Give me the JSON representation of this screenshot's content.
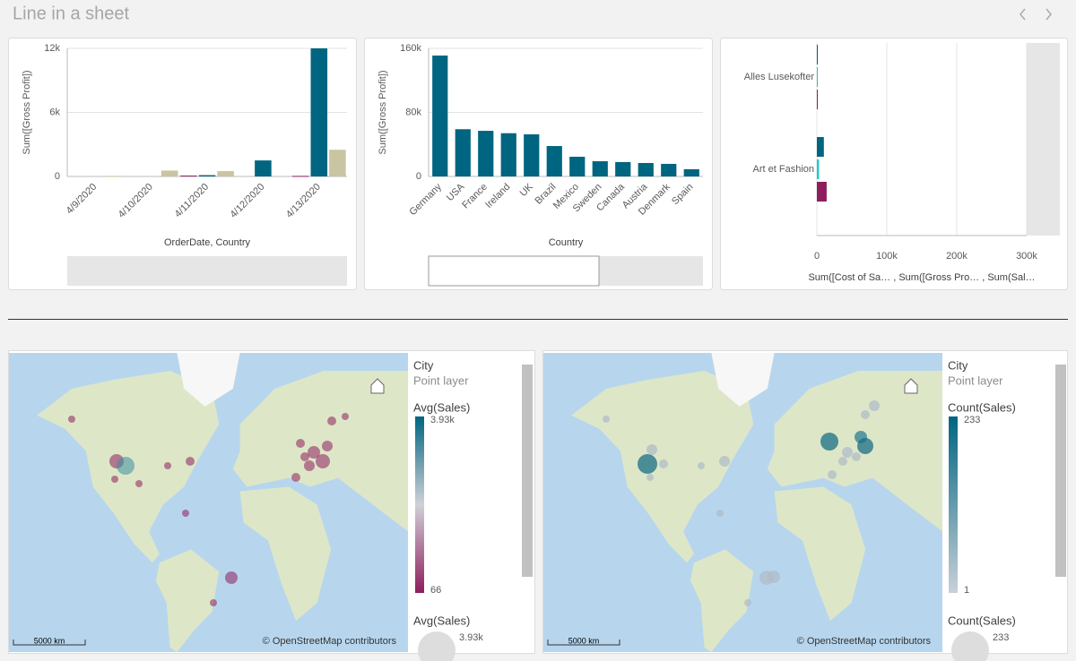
{
  "header": {
    "title": "Line in a sheet"
  },
  "chart_data": [
    {
      "type": "bar",
      "y_label": "Sum([Gross Profit])",
      "x_label": "OrderDate, Country",
      "categories": [
        "4/9/2020",
        "4/10/2020",
        "4/11/2020",
        "4/12/2020",
        "4/13/2020"
      ],
      "series": [
        {
          "color": "#8e1e5c",
          "values": [
            null,
            null,
            80,
            null,
            50
          ]
        },
        {
          "color": "#006580",
          "values": [
            null,
            null,
            120,
            1500,
            12000
          ]
        },
        {
          "color": "#c9c5a3",
          "values": [
            50,
            550,
            500,
            null,
            2500
          ]
        }
      ],
      "ylim": [
        0,
        12000
      ],
      "yticks": [
        0,
        {
          "value": 6000,
          "label": "6k"
        },
        {
          "value": 12000,
          "label": "12k"
        }
      ],
      "grid": true
    },
    {
      "type": "bar",
      "y_label": "Sum([Gross Profit])",
      "x_label": "Country",
      "categories": [
        "Germany",
        "USA",
        "France",
        "Ireland",
        "UK",
        "Brazil",
        "Mexico",
        "Sweden",
        "Canada",
        "Austria",
        "Denmark",
        "Spain"
      ],
      "series": [
        {
          "color": "#006580",
          "values": [
            151000,
            59000,
            57000,
            54000,
            52600,
            38000,
            24600,
            19000,
            18000,
            16800,
            15700,
            9000
          ]
        }
      ],
      "ylim": [
        0,
        160000
      ],
      "yticks": [
        0,
        {
          "value": 80000,
          "label": "80k"
        },
        {
          "value": 160000,
          "label": "160k"
        }
      ],
      "grid": true
    },
    {
      "type": "bar",
      "horizontal": true,
      "x_label": "Sum([Cost of Sa… , Sum([Gross Pro… , Sum(Sal…",
      "categories": [
        "Alles Lusekofter",
        "Art et Fashion"
      ],
      "series": [
        {
          "color": "#006580",
          "values": [
            800,
            10000
          ]
        },
        {
          "color": "#10cfc9",
          "values": [
            300,
            3000
          ]
        },
        {
          "color": "#8e1e5c",
          "values": [
            400,
            14000
          ]
        }
      ],
      "xlim": [
        0,
        300000
      ],
      "xticks": [
        0,
        {
          "value": 100000,
          "label": "100k"
        },
        {
          "value": 200000,
          "label": "200k"
        },
        {
          "value": 300000,
          "label": "300k"
        }
      ],
      "grid": true
    }
  ],
  "maps": [
    {
      "title": "City",
      "layer": "Point layer",
      "legend_title": "Avg(Sales)",
      "legend_max": "3.93k",
      "legend_min": "66",
      "size_title": "Avg(Sales)",
      "size_max": "3.93k",
      "scale": "5000 km",
      "attribution": "© OpenStreetMap contributors"
    },
    {
      "title": "City",
      "layer": "Point layer",
      "legend_title": "Count(Sales)",
      "legend_max": "233",
      "legend_min": "1",
      "size_title": "Count(Sales)",
      "size_max": "233",
      "scale": "5000 km",
      "attribution": "© OpenStreetMap contributors"
    }
  ]
}
